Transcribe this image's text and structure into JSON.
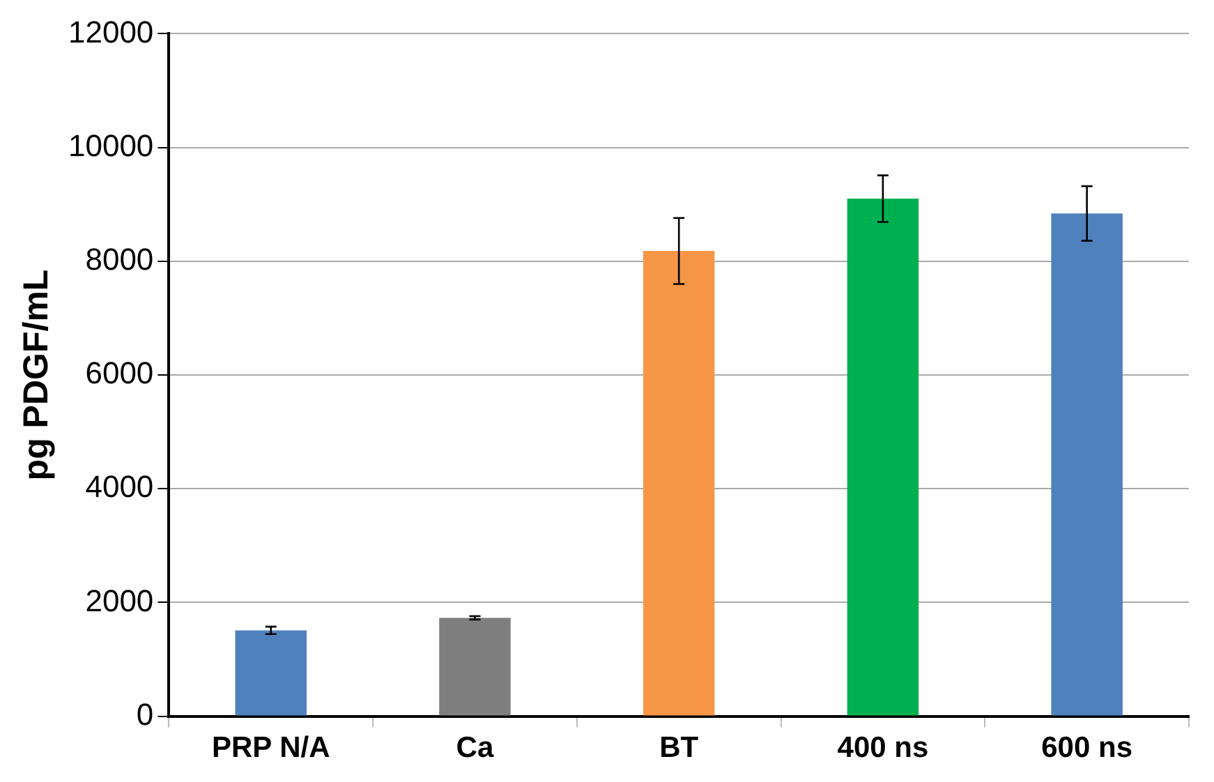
{
  "chart_data": {
    "type": "bar",
    "ylabel": "pg PDGF/mL",
    "categories": [
      "PRP N/A",
      "Ca",
      "BT",
      "400 ns",
      "600 ns"
    ],
    "values": [
      1510,
      1730,
      8180,
      9100,
      8840
    ],
    "colors": [
      "#4f81bd",
      "#7f7f7f",
      "#f79646",
      "#00b050",
      "#4f81bd"
    ],
    "errors": [
      65,
      30,
      580,
      410,
      480
    ],
    "ylim": [
      0,
      12000
    ],
    "yticks": [
      0,
      2000,
      4000,
      6000,
      8000,
      10000,
      12000
    ],
    "grid": "y",
    "legend": false
  }
}
